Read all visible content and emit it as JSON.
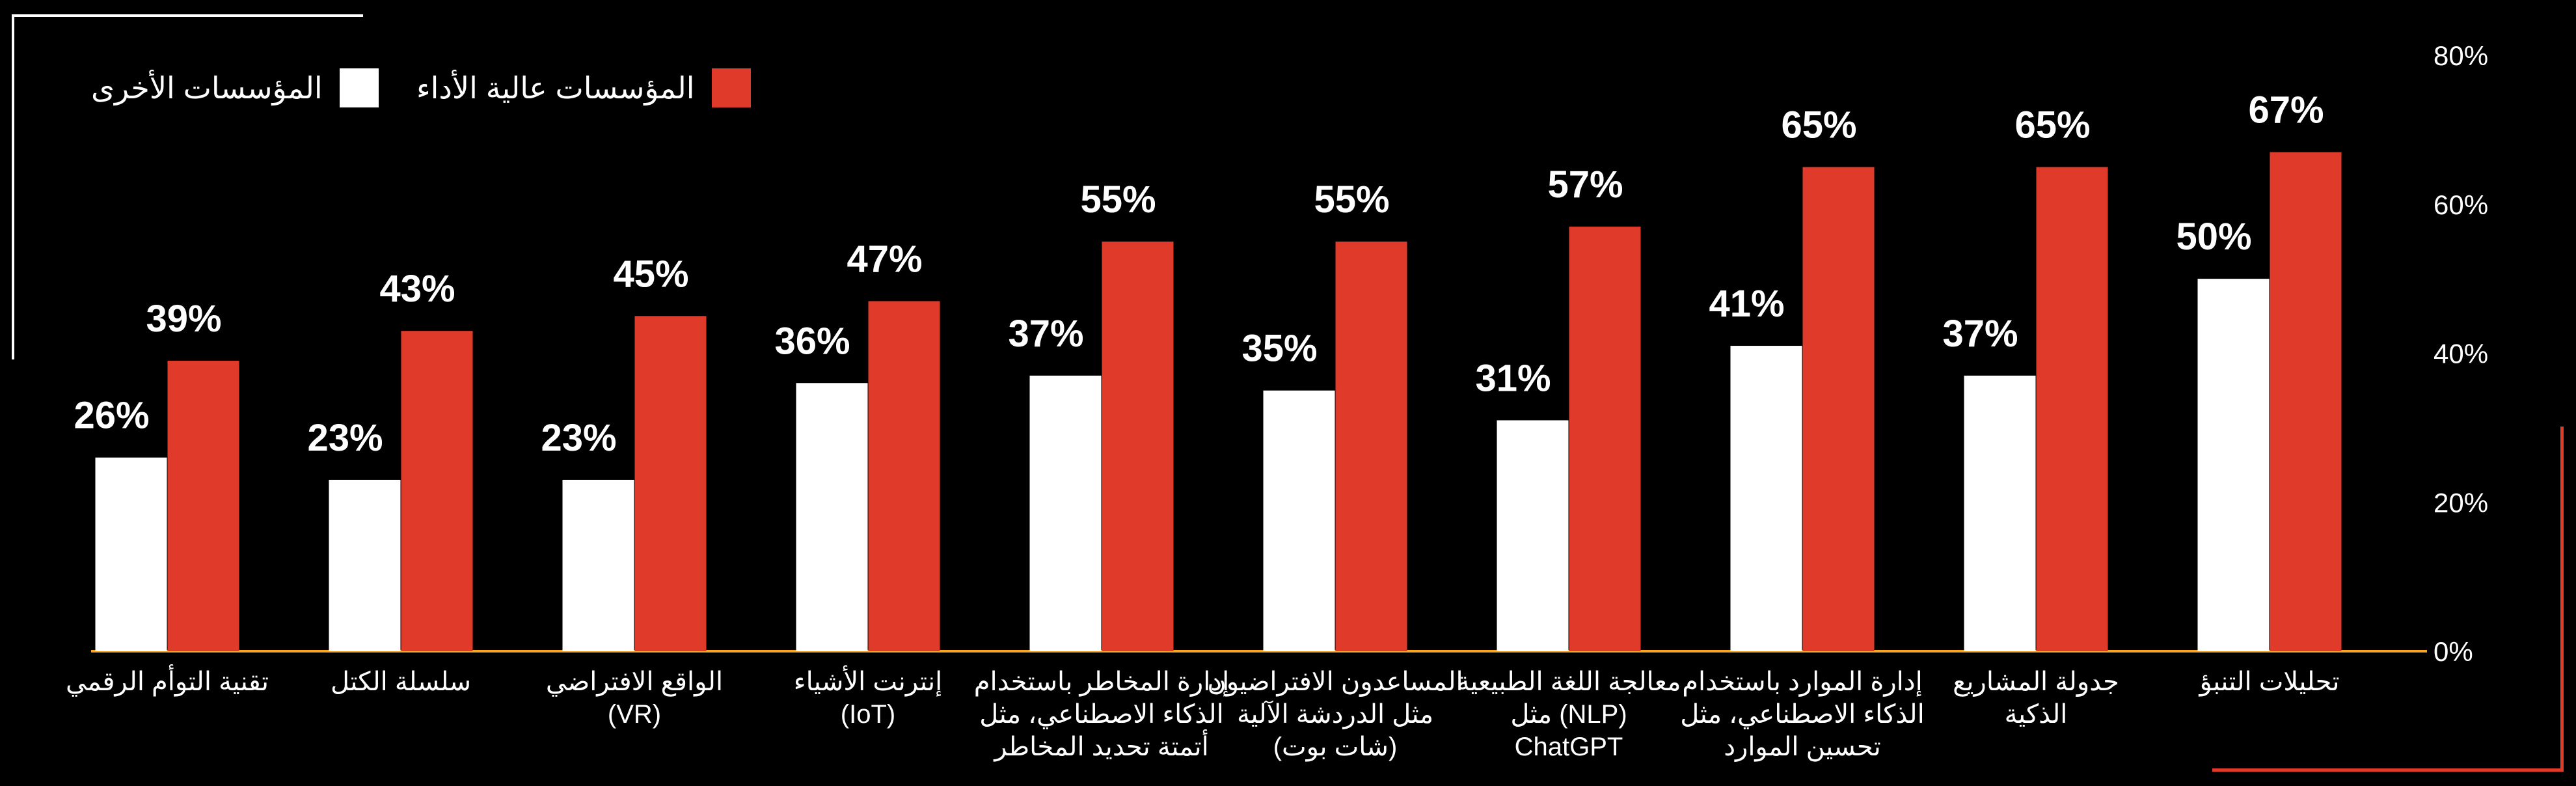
{
  "chart_data": {
    "type": "bar",
    "title": "",
    "xlabel": "",
    "ylabel": "",
    "ylim": [
      0,
      80
    ],
    "y_ticks": [
      "0%",
      "20%",
      "40%",
      "60%",
      "80%"
    ],
    "y_tick_values": [
      0,
      20,
      40,
      60,
      80
    ],
    "value_suffix": "%",
    "categories": [
      [
        "تحليلات التنبؤ"
      ],
      [
        "جدولة المشاريع",
        "الذكية"
      ],
      [
        "إدارة الموارد باستخدام",
        "الذكاء الاصطناعي، مثل",
        "تحسين الموارد"
      ],
      [
        "معالجة اللغة الطبيعية",
        "(NLP) مثل",
        "ChatGPT"
      ],
      [
        "المساعدون الافتراضيون",
        "مثل الدردشة الآلية",
        "(شات بوت)"
      ],
      [
        "إدارة المخاطر باستخدام",
        "الذكاء الاصطناعي، مثل",
        "أتمتة تحديد المخاطر"
      ],
      [
        "إنترنت الأشياء",
        "(IoT)"
      ],
      [
        "الواقع الافتراضي",
        "(VR)"
      ],
      [
        "سلسلة الكتل"
      ],
      [
        "تقنية التوأم الرقمي"
      ]
    ],
    "series": [
      {
        "name": "المؤسسات عالية الأداء",
        "color": "#e03a2a",
        "values": [
          67,
          65,
          65,
          57,
          55,
          55,
          47,
          45,
          43,
          39
        ]
      },
      {
        "name": "المؤسسات الأخرى",
        "color": "#ffffff",
        "values": [
          50,
          37,
          41,
          31,
          35,
          37,
          36,
          23,
          23,
          26
        ]
      }
    ],
    "axis_line_color": "#f5a623",
    "legend_position": "top-left",
    "grid": false
  },
  "legend": {
    "high": "المؤسسات عالية الأداء",
    "other": "المؤسسات الأخرى",
    "high_color": "#e03a2a",
    "other_color": "#ffffff"
  }
}
